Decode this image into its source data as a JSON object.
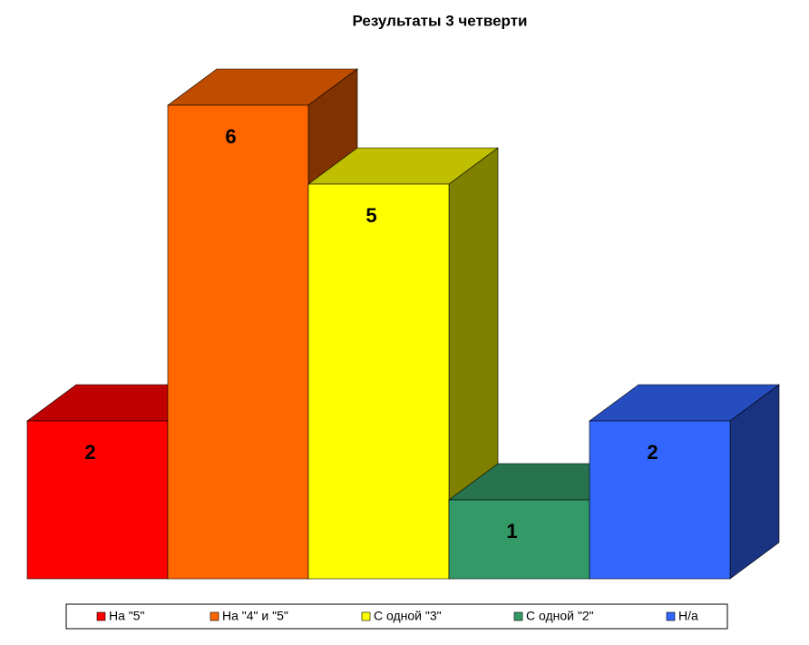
{
  "chart_data": {
    "type": "bar3d",
    "title": "Результаты 3 четверти",
    "series": [
      {
        "name": "На \"5\"",
        "color": "#ff0000",
        "values": [
          2
        ]
      },
      {
        "name": "На \"4\" и \"5\"",
        "color": "#ff6600",
        "values": [
          6
        ]
      },
      {
        "name": "С одной \"3\"",
        "color": "#ffff00",
        "values": [
          5
        ]
      },
      {
        "name": "С одной \"2\"",
        "color": "#339966",
        "values": [
          1
        ]
      },
      {
        "name": "Н/а",
        "color": "#3366ff",
        "values": [
          2
        ]
      }
    ],
    "legend": "bottom"
  }
}
